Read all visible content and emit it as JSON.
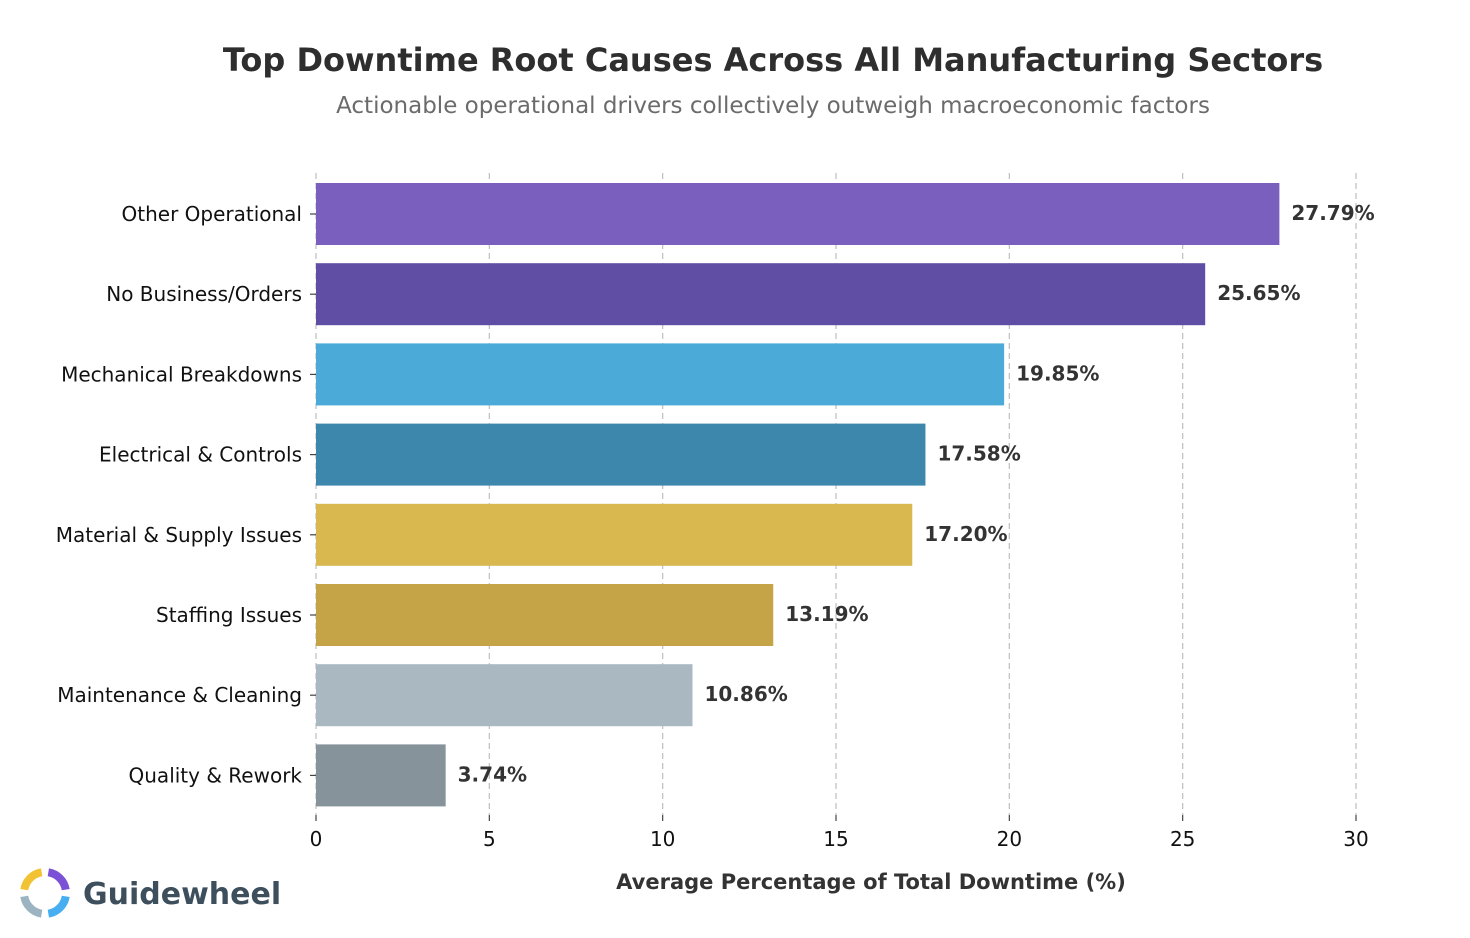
{
  "chart_data": {
    "type": "bar",
    "orientation": "horizontal",
    "title": "Top Downtime Root Causes Across All Manufacturing Sectors",
    "subtitle": "Actionable operational drivers collectively outweigh macroeconomic factors",
    "xlabel": "Average Percentage of Total Downtime (%)",
    "ylabel": "",
    "xlim": [
      0,
      30
    ],
    "xticks": [
      0,
      5,
      10,
      15,
      20,
      25,
      30
    ],
    "grid": "x-dashed",
    "categories": [
      "Other Operational",
      "No Business/Orders",
      "Mechanical Breakdowns",
      "Electrical & Controls",
      "Material & Supply Issues",
      "Staffing Issues",
      "Maintenance & Cleaning",
      "Quality & Rework"
    ],
    "values": [
      27.79,
      25.65,
      19.85,
      17.58,
      17.2,
      13.19,
      10.86,
      3.74
    ],
    "value_labels": [
      "27.79%",
      "25.65%",
      "19.85%",
      "17.58%",
      "17.20%",
      "13.19%",
      "10.86%",
      "3.74%"
    ],
    "colors": [
      "#7a5fbf",
      "#604ea5",
      "#4caad9",
      "#3d87ad",
      "#d9b84f",
      "#c4a446",
      "#aab8c2",
      "#87939b"
    ]
  },
  "brand": {
    "name": "Guidewheel",
    "colors": [
      "#f2c232",
      "#7b52d6",
      "#47aef2",
      "#9cb3c2"
    ]
  }
}
